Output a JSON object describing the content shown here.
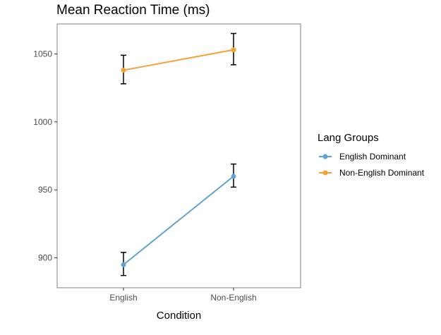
{
  "chart_data": {
    "type": "line",
    "title": "Mean Reaction Time (ms)",
    "xlabel": "Condition",
    "ylabel": "",
    "categories": [
      "English",
      "Non-English"
    ],
    "yticks": [
      900,
      950,
      1000,
      1050
    ],
    "ylim": [
      878,
      1072
    ],
    "grid": false,
    "legend": {
      "title": "Lang Groups",
      "position": "right"
    },
    "series": [
      {
        "name": "English Dominant",
        "color": "#5fa4d3",
        "values": [
          895,
          960
        ],
        "err_low": [
          887,
          952
        ],
        "err_high": [
          904,
          969
        ]
      },
      {
        "name": "Non-English Dominant",
        "color": "#f5a233",
        "values": [
          1038,
          1053
        ],
        "err_low": [
          1028,
          1042
        ],
        "err_high": [
          1049,
          1065
        ]
      }
    ],
    "errorbar_color": "#000000"
  }
}
